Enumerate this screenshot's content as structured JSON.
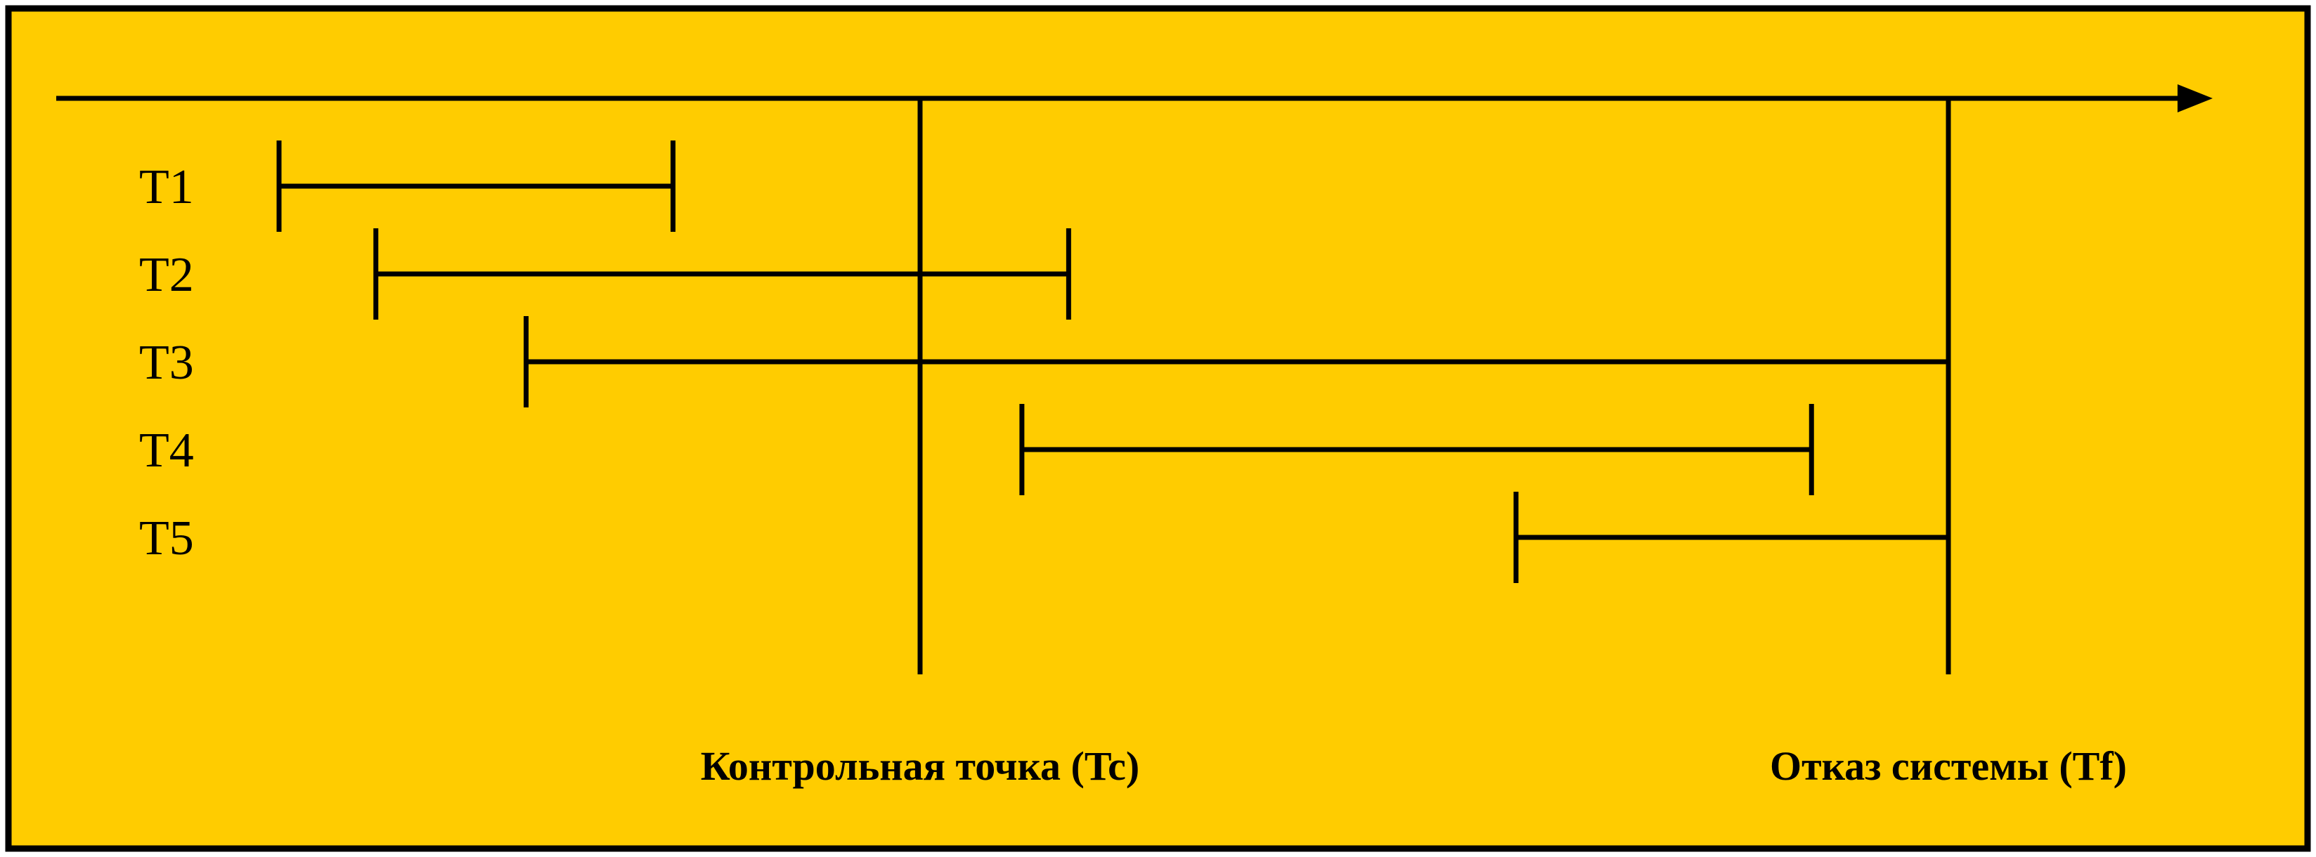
{
  "colors": {
    "background": "#FFCC00",
    "border": "#000000",
    "line": "#000000"
  },
  "transactions": [
    {
      "label": "T1",
      "start": 0.0,
      "end": 0.236,
      "ends_at": ""
    },
    {
      "label": "T2",
      "start": 0.058,
      "end": 0.473,
      "ends_at": ""
    },
    {
      "label": "T3",
      "start": 0.148,
      "end": 1.0,
      "ends_at": "failure"
    },
    {
      "label": "T4",
      "start": 0.445,
      "end": 0.918,
      "ends_at": ""
    },
    {
      "label": "T5",
      "start": 0.741,
      "end": 1.0,
      "ends_at": "failure"
    }
  ],
  "checkpoint": {
    "label": "Контрольная точка (Tc)",
    "at": 0.384
  },
  "failure": {
    "label": "Отказ системы (Tf)",
    "at": 1.0
  }
}
